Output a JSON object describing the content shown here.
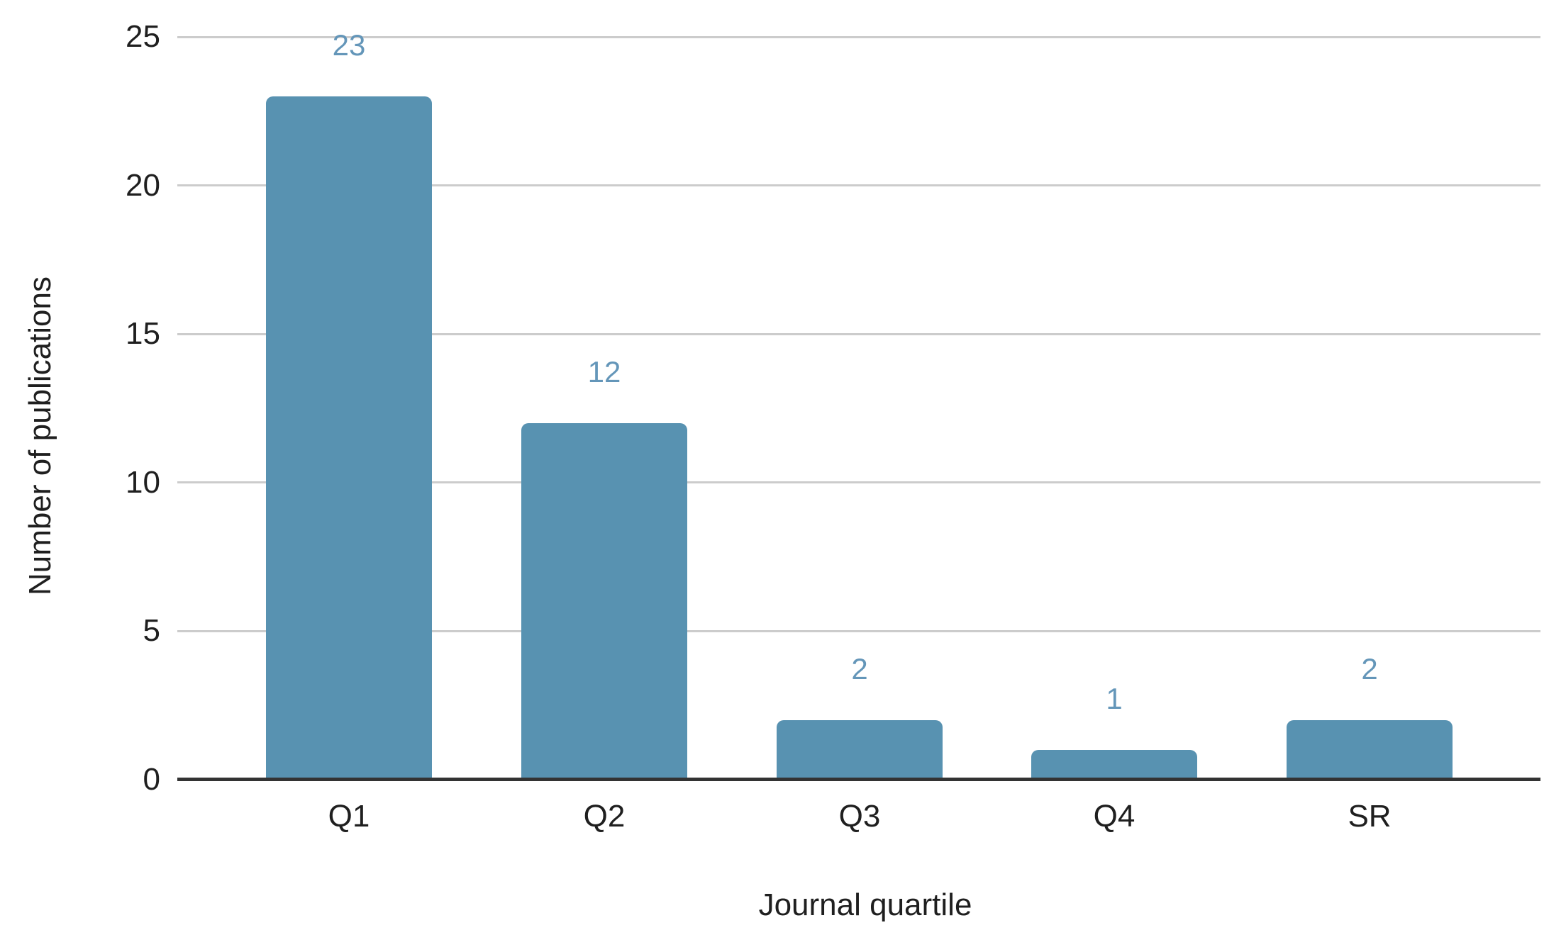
{
  "chart_data": {
    "type": "bar",
    "title": "",
    "categories": [
      "Q1",
      "Q2",
      "Q3",
      "Q4",
      "SR"
    ],
    "values": [
      23,
      12,
      2,
      1,
      2
    ],
    "data_labels": [
      "23",
      "12",
      "2",
      "1",
      "2"
    ],
    "xlabel": "Journal quartile",
    "ylabel": "Number of publications",
    "yticks": [
      0,
      5,
      10,
      15,
      20,
      25
    ],
    "ylim": [
      0,
      25
    ],
    "grid": true,
    "legend": "none",
    "colors": {
      "bar": "#5892b1",
      "data_label": "#6496b9",
      "gridline": "#cccccc",
      "axis_line": "#333333",
      "tick_text": "#1f1f1f",
      "background": "#ffffff"
    }
  }
}
